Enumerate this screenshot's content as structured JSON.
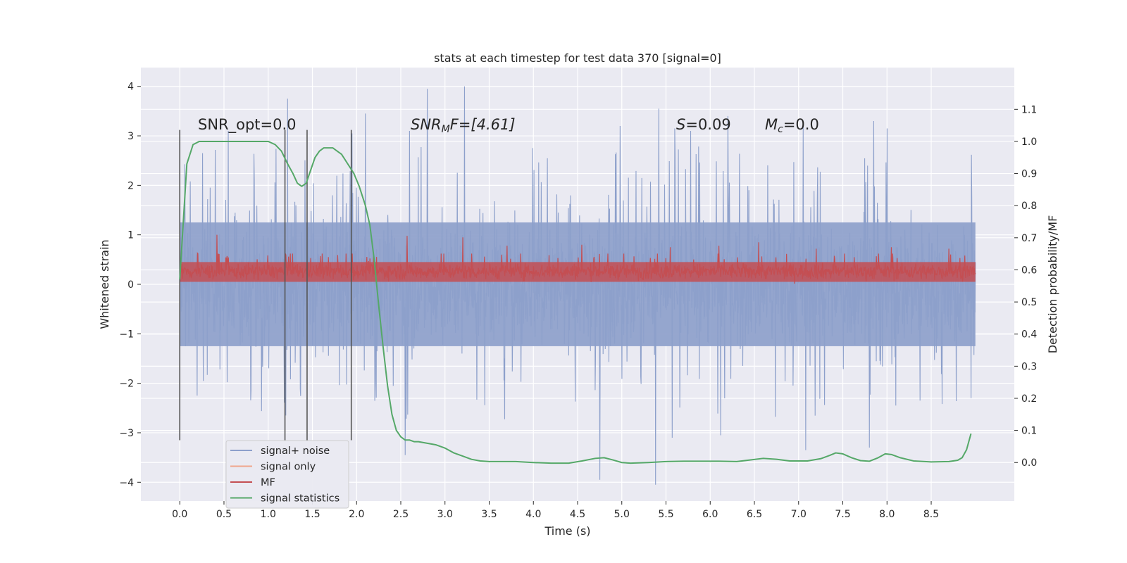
{
  "chart_data": {
    "type": "line",
    "title": "stats at each timestep for test data 370 [signal=0]",
    "xlabel": "Time (s)",
    "ylabel": "Whitened strain",
    "y2label": "Detection probability/MF",
    "xlim": [
      -0.44,
      9.44
    ],
    "ylim": [
      -4.38,
      4.38
    ],
    "y2lim": [
      -0.12,
      1.23
    ],
    "x_ticks": [
      0.0,
      0.5,
      1.0,
      1.5,
      2.0,
      2.5,
      3.0,
      3.5,
      4.0,
      4.5,
      5.0,
      5.5,
      6.0,
      6.5,
      7.0,
      7.5,
      8.0,
      8.5
    ],
    "x_tick_labels": [
      "0.0",
      "0.5",
      "1.0",
      "1.5",
      "2.0",
      "2.5",
      "3.0",
      "3.5",
      "4.0",
      "4.5",
      "5.0",
      "5.5",
      "6.0",
      "6.5",
      "7.0",
      "7.5",
      "8.0",
      "8.5"
    ],
    "y_ticks": [
      -4,
      -3,
      -2,
      -1,
      0,
      1,
      2,
      3,
      4
    ],
    "y_tick_labels": [
      "−4",
      "−3",
      "−2",
      "−1",
      "0",
      "1",
      "2",
      "3",
      "4"
    ],
    "y2_ticks": [
      0.0,
      0.1,
      0.2,
      0.3,
      0.4,
      0.5,
      0.6,
      0.7,
      0.8,
      0.9,
      1.0,
      1.1
    ],
    "y2_tick_labels": [
      "0.0",
      "0.1",
      "0.2",
      "0.3",
      "0.4",
      "0.5",
      "0.6",
      "0.7",
      "0.8",
      "0.9",
      "1.0",
      "1.1"
    ],
    "grid": true,
    "legend_position": "lower-left",
    "legend": [
      {
        "label": "signal+ noise",
        "color": "#8da0cb"
      },
      {
        "label": "signal only",
        "color": "#f0a58c"
      },
      {
        "label": "MF",
        "color": "#c44e52"
      },
      {
        "label": "signal statistics",
        "color": "#55a868"
      }
    ],
    "annotations": {
      "snr_opt": "SNR_opt=0.0",
      "snr_mf_prefix": "SNR",
      "snr_mf_sub": "M",
      "snr_mf_rest": "F=[4.61]",
      "s_var": "S",
      "s_val": "=0.09",
      "mc_var": "M",
      "mc_sub": "c",
      "mc_val": "=0.0"
    },
    "vertical_markers": [
      0.0,
      1.19,
      1.44,
      1.94
    ],
    "vertical_marker_range": [
      -3.15,
      3.12
    ],
    "series": [
      {
        "name": "signal+ noise",
        "color": "#8da0cb",
        "axis": "left",
        "x_range": [
          0.0,
          9.0
        ],
        "envelope_approx": {
          "body_low": -1.25,
          "body_high": 1.25,
          "spike_max": 4.0,
          "spike_min": -4.05
        },
        "peaks": [
          [
            0.55,
            3.1
          ],
          [
            1.22,
            3.75
          ],
          [
            1.95,
            3.05
          ],
          [
            2.1,
            3.45
          ],
          [
            2.6,
            3.1
          ],
          [
            2.8,
            3.95
          ],
          [
            3.22,
            4.0
          ],
          [
            4.75,
            3.3
          ],
          [
            4.98,
            3.2
          ],
          [
            5.42,
            3.55
          ],
          [
            5.6,
            3.15
          ],
          [
            5.78,
            3.1
          ],
          [
            6.2,
            3.4
          ],
          [
            7.05,
            3.2
          ],
          [
            7.85,
            3.3
          ],
          [
            8.0,
            3.15
          ],
          [
            8.95,
            1.95
          ]
        ],
        "troughs": [
          [
            0.0,
            -2.4
          ],
          [
            1.2,
            -2.65
          ],
          [
            2.55,
            -3.45
          ],
          [
            4.75,
            -3.95
          ],
          [
            5.38,
            -4.05
          ],
          [
            5.57,
            -3.1
          ],
          [
            6.12,
            -3.05
          ],
          [
            7.08,
            -3.35
          ],
          [
            7.8,
            -3.3
          ],
          [
            8.95,
            -2.3
          ]
        ]
      },
      {
        "name": "MF",
        "color": "#c44e52",
        "axis": "left",
        "x_range": [
          0.0,
          9.0
        ],
        "envelope_approx": {
          "low": -0.02,
          "high": 0.55,
          "spike_max": 1.0
        },
        "peaks": [
          [
            0.42,
            1.0
          ],
          [
            0.2,
            0.63
          ],
          [
            1.25,
            0.62
          ],
          [
            2.57,
            0.98
          ],
          [
            3.2,
            0.95
          ],
          [
            3.7,
            0.78
          ],
          [
            4.55,
            0.8
          ],
          [
            5.55,
            0.75
          ],
          [
            6.1,
            0.78
          ],
          [
            6.55,
            0.85
          ],
          [
            7.2,
            0.72
          ],
          [
            8.05,
            0.75
          ],
          [
            8.7,
            0.72
          ]
        ]
      },
      {
        "name": "signal statistics",
        "color": "#55a868",
        "axis": "right",
        "x": [
          0.0,
          0.04,
          0.08,
          0.15,
          0.22,
          0.3,
          0.45,
          0.6,
          0.75,
          0.9,
          1.0,
          1.08,
          1.15,
          1.22,
          1.28,
          1.33,
          1.38,
          1.43,
          1.48,
          1.53,
          1.58,
          1.63,
          1.68,
          1.73,
          1.78,
          1.83,
          1.9,
          1.97,
          2.03,
          2.1,
          2.15,
          2.2,
          2.25,
          2.3,
          2.35,
          2.4,
          2.45,
          2.5,
          2.55,
          2.6,
          2.65,
          2.7,
          2.8,
          2.9,
          3.0,
          3.1,
          3.2,
          3.3,
          3.4,
          3.5,
          3.6,
          3.8,
          4.0,
          4.2,
          4.4,
          4.55,
          4.7,
          4.8,
          4.9,
          5.0,
          5.1,
          5.3,
          5.5,
          5.7,
          5.9,
          6.1,
          6.3,
          6.45,
          6.6,
          6.75,
          6.9,
          7.1,
          7.25,
          7.35,
          7.42,
          7.5,
          7.6,
          7.7,
          7.8,
          7.9,
          7.98,
          8.05,
          8.15,
          8.3,
          8.5,
          8.7,
          8.8,
          8.85,
          8.9,
          8.95
        ],
        "values": [
          0.57,
          0.75,
          0.93,
          0.99,
          1.0,
          1.0,
          1.0,
          1.0,
          1.0,
          1.0,
          1.0,
          0.99,
          0.97,
          0.93,
          0.9,
          0.87,
          0.86,
          0.87,
          0.91,
          0.95,
          0.97,
          0.98,
          0.98,
          0.98,
          0.97,
          0.96,
          0.93,
          0.9,
          0.86,
          0.8,
          0.74,
          0.63,
          0.49,
          0.36,
          0.24,
          0.15,
          0.1,
          0.08,
          0.07,
          0.07,
          0.065,
          0.065,
          0.06,
          0.055,
          0.045,
          0.03,
          0.02,
          0.01,
          0.005,
          0.003,
          0.003,
          0.003,
          0.0,
          -0.002,
          -0.002,
          0.005,
          0.013,
          0.015,
          0.008,
          0.0,
          -0.002,
          0.0,
          0.003,
          0.004,
          0.004,
          0.004,
          0.003,
          0.008,
          0.013,
          0.01,
          0.005,
          0.005,
          0.012,
          0.022,
          0.03,
          0.027,
          0.015,
          0.006,
          0.004,
          0.015,
          0.027,
          0.025,
          0.015,
          0.005,
          0.002,
          0.003,
          0.007,
          0.015,
          0.04,
          0.09
        ]
      }
    ]
  }
}
